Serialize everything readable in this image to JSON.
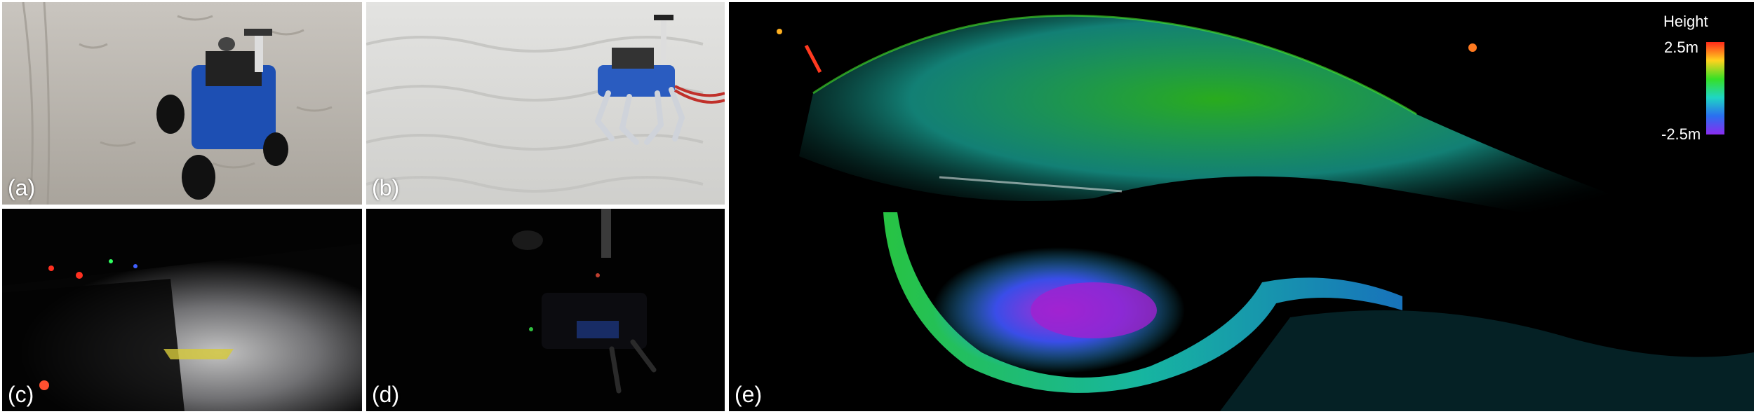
{
  "panels": [
    {
      "label": "(a)",
      "scene": "wheeled rover on daytime beach sand"
    },
    {
      "label": "(b)",
      "scene": "quadruped robot on daytime sand dunes"
    },
    {
      "label": "(c)",
      "scene": "wheeled rover at night with headlights on sand"
    },
    {
      "label": "(d)",
      "scene": "quadruped robot at night in darkness"
    },
    {
      "label": "(e)",
      "scene": "height-colored lidar point cloud map"
    }
  ],
  "legend": {
    "title": "Height",
    "max_label": "2.5m",
    "min_label": "-2.5m",
    "colors": [
      "#ff2a1a",
      "#ffd21e",
      "#36e026",
      "#1fd6c4",
      "#2a6ff0",
      "#8a2cf0"
    ]
  }
}
